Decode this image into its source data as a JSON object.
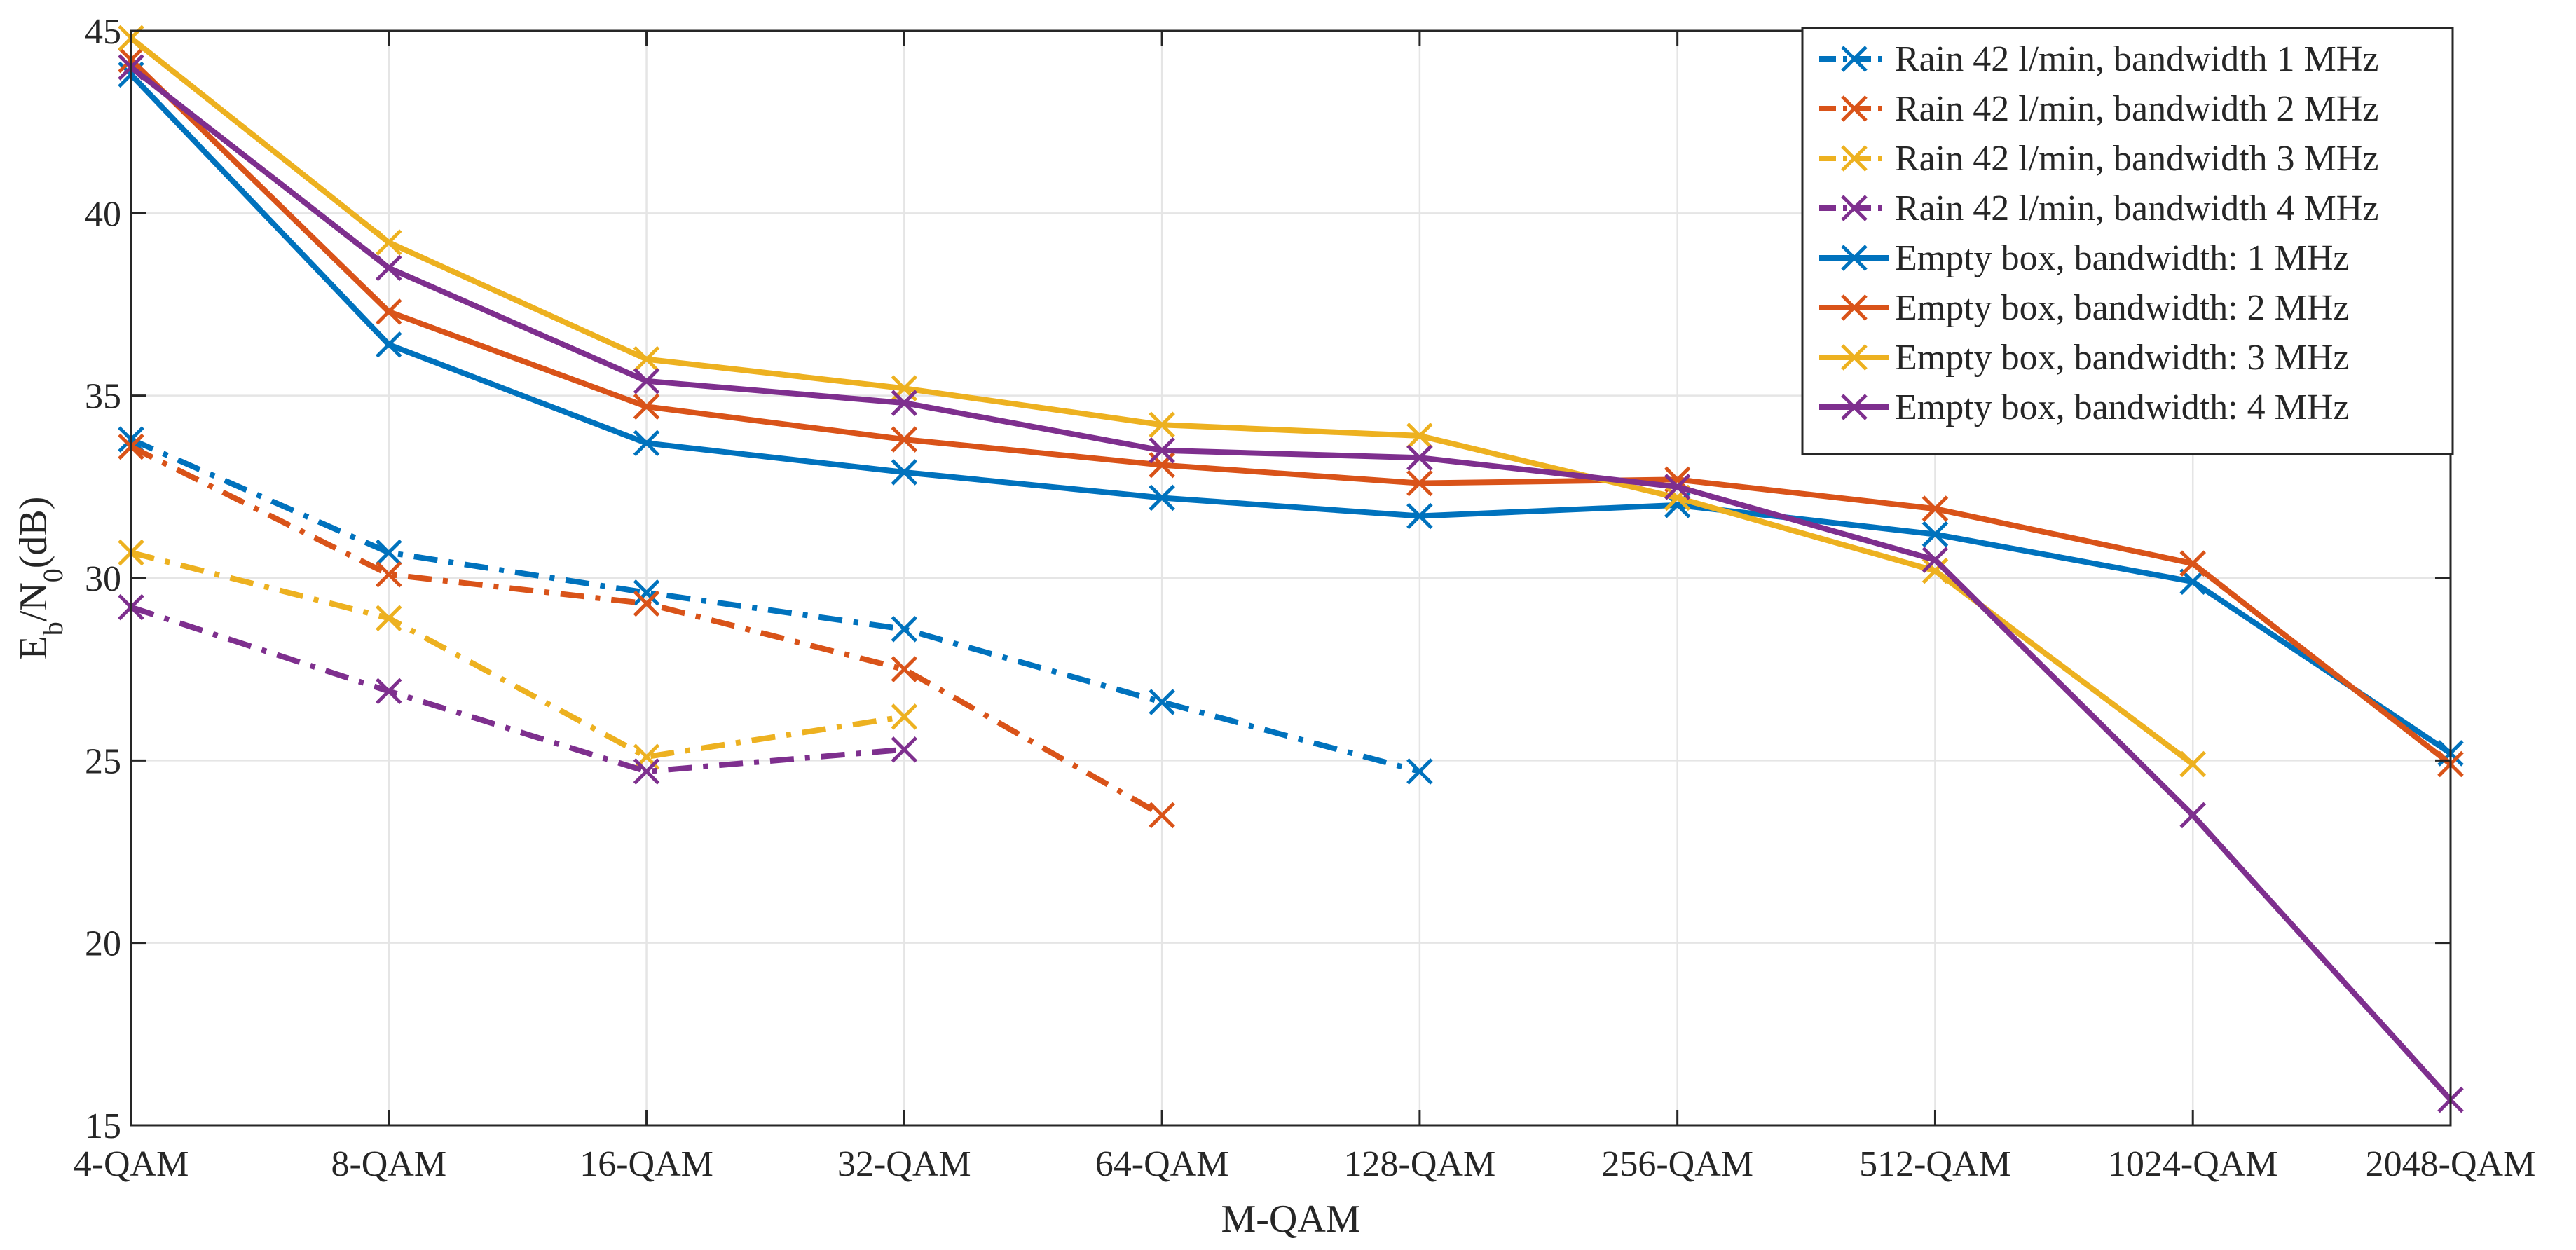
{
  "chart_data": {
    "type": "line",
    "title": "",
    "xlabel": "M-QAM",
    "ylabel_main": "E",
    "ylabel_sub1": "b",
    "ylabel_mid": "/N",
    "ylabel_sub2": "0",
    "ylabel_tail": "(dB)",
    "categories": [
      "4-QAM",
      "8-QAM",
      "16-QAM",
      "32-QAM",
      "64-QAM",
      "128-QAM",
      "256-QAM",
      "512-QAM",
      "1024-QAM",
      "2048-QAM"
    ],
    "ylim": [
      15,
      45
    ],
    "yticks": [
      "15",
      "20",
      "25",
      "30",
      "35",
      "40",
      "45"
    ],
    "grid": true,
    "legend_position": "top-right",
    "series": [
      {
        "name": "Rain 42 l/min, bandwidth 1 MHz",
        "color": "#0072BD",
        "style": "dashdot",
        "values": [
          33.8,
          30.7,
          29.6,
          28.6,
          26.6,
          24.7,
          null,
          null,
          null,
          null
        ]
      },
      {
        "name": "Rain 42 l/min, bandwidth 2 MHz",
        "color": "#D95319",
        "style": "dashdot",
        "values": [
          33.6,
          30.1,
          29.3,
          27.5,
          23.5,
          null,
          null,
          null,
          null,
          null
        ]
      },
      {
        "name": "Rain 42 l/min, bandwidth 3 MHz",
        "color": "#EDB120",
        "style": "dashdot",
        "values": [
          30.7,
          28.9,
          25.1,
          26.2,
          null,
          null,
          null,
          null,
          null,
          null
        ]
      },
      {
        "name": "Rain 42 l/min, bandwidth 4 MHz",
        "color": "#7E2F8E",
        "style": "dashdot",
        "values": [
          29.2,
          26.9,
          24.7,
          25.3,
          null,
          null,
          null,
          null,
          null,
          null
        ]
      },
      {
        "name": "Empty box, bandwidth: 1 MHz",
        "color": "#0072BD",
        "style": "solid",
        "values": [
          43.8,
          36.4,
          33.7,
          32.9,
          32.2,
          31.7,
          32.0,
          31.2,
          29.9,
          25.2
        ]
      },
      {
        "name": "Empty box, bandwidth: 2 MHz",
        "color": "#D95319",
        "style": "solid",
        "values": [
          44.2,
          37.3,
          34.7,
          33.8,
          33.1,
          32.6,
          32.7,
          31.9,
          30.4,
          24.9
        ]
      },
      {
        "name": "Empty box, bandwidth: 3 MHz",
        "color": "#EDB120",
        "style": "solid",
        "values": [
          44.8,
          39.2,
          36.0,
          35.2,
          34.2,
          33.9,
          32.2,
          30.2,
          24.9,
          null
        ]
      },
      {
        "name": "Empty box, bandwidth: 4 MHz",
        "color": "#7E2F8E",
        "style": "solid",
        "values": [
          44.0,
          38.5,
          35.4,
          34.8,
          33.5,
          33.3,
          32.5,
          30.5,
          23.5,
          15.7
        ]
      }
    ]
  }
}
